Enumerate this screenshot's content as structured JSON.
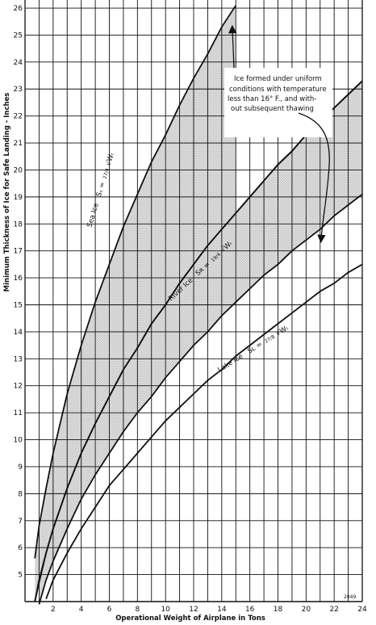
{
  "chart_data": {
    "type": "line",
    "xlabel": "Operational Weight of Airplane in Tons",
    "ylabel": "Minimum Thickness of Ice for Safe Landing - Inches",
    "xlim": [
      0,
      24
    ],
    "ylim": [
      4,
      26.3
    ],
    "x_ticks": [
      "2",
      "4",
      "6",
      "8",
      "10",
      "12",
      "14",
      "16",
      "18",
      "20",
      "22",
      "24"
    ],
    "y_ticks": [
      "5",
      "6",
      "7",
      "8",
      "9",
      "10",
      "11",
      "12",
      "13",
      "14",
      "15",
      "16",
      "17",
      "18",
      "19",
      "20",
      "21",
      "22",
      "23",
      "24",
      "25",
      "26"
    ],
    "grid": true,
    "x": [
      0.7,
      1,
      1.5,
      2,
      3,
      4,
      5,
      6,
      7,
      8,
      9,
      10,
      11,
      12,
      13,
      14,
      15,
      16,
      17,
      18,
      19,
      20,
      21,
      22,
      23,
      24
    ],
    "series": [
      {
        "name": "Sea ice",
        "label_prefix": "Sea Ice",
        "formula_lhs": "Sₛ =",
        "formula_coef": "27/4",
        "formula_root": "√Wₜ",
        "values": [
          5.6,
          6.8,
          8.2,
          9.5,
          11.7,
          13.5,
          15.1,
          16.5,
          17.9,
          19.1,
          20.3,
          21.3,
          22.4,
          23.4,
          24.3,
          25.3,
          26.1,
          null,
          null,
          null,
          null,
          null,
          null,
          null,
          null,
          null
        ]
      },
      {
        "name": "Sea ice (lower band edge)",
        "values": [
          4.0,
          4.7,
          5.8,
          6.7,
          8.2,
          9.5,
          10.6,
          11.6,
          12.6,
          13.4,
          14.3,
          15.0,
          15.8,
          16.5,
          17.2,
          17.8,
          18.4,
          19.0,
          19.6,
          20.2,
          20.7,
          21.3,
          21.8,
          22.3,
          22.8,
          23.3
        ]
      },
      {
        "name": "River ice",
        "label_prefix": "River Ice",
        "formula_lhs": "Sʀ =",
        "formula_coef": "19/4",
        "formula_root": "√Wₜ",
        "values": [
          4.0,
          4.8,
          5.8,
          6.7,
          8.2,
          9.5,
          10.6,
          11.6,
          12.6,
          13.4,
          14.3,
          15.0,
          15.8,
          16.5,
          17.2,
          17.8,
          18.4,
          19.0,
          19.6,
          20.2,
          20.7,
          21.3,
          21.8,
          22.3,
          22.8,
          23.3
        ]
      },
      {
        "name": "River ice (lower band edge)",
        "values": [
          null,
          3.9,
          4.8,
          5.5,
          6.7,
          7.8,
          8.7,
          9.5,
          10.3,
          11.0,
          11.6,
          12.3,
          12.9,
          13.5,
          14.0,
          14.6,
          15.1,
          15.6,
          16.1,
          16.5,
          17.0,
          17.4,
          17.8,
          18.3,
          18.7,
          19.1
        ]
      },
      {
        "name": "Lake ice",
        "label_prefix": "Lake Ice",
        "formula_lhs": "Sʟ =",
        "formula_coef": "27/8",
        "formula_root": "√Wₜ",
        "values": [
          null,
          null,
          4.1,
          4.8,
          5.8,
          6.7,
          7.5,
          8.3,
          8.9,
          9.5,
          10.1,
          10.7,
          11.2,
          11.7,
          12.2,
          12.6,
          13.1,
          13.5,
          13.9,
          14.3,
          14.7,
          15.1,
          15.5,
          15.8,
          16.2,
          16.5
        ]
      }
    ],
    "bands": [
      {
        "upper": "Sea ice",
        "lower": "Sea ice (lower band edge)",
        "fill": "#c8c8c8"
      },
      {
        "upper": "River ice",
        "lower": "River ice (lower band edge)",
        "fill": "#c8c8c8"
      }
    ],
    "annotations": [
      "Ice formed under uniform",
      "conditions with temperature",
      "less than 16° F., and with-",
      "out subsequent thawing"
    ],
    "figure_number": "2049"
  }
}
